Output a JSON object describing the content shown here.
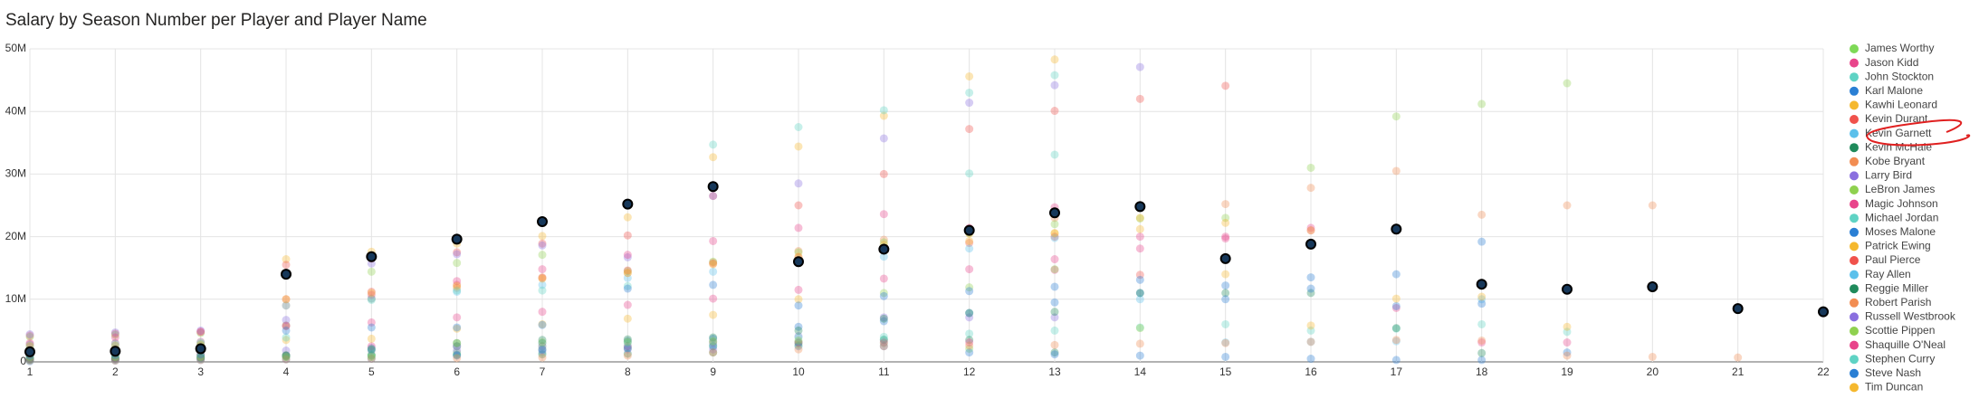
{
  "chart_data": {
    "type": "scatter",
    "title": "Salary by Season Number per Player and Player Name",
    "x": [
      1,
      2,
      3,
      4,
      5,
      6,
      7,
      8,
      9,
      10,
      11,
      12,
      13,
      14,
      15,
      16,
      17,
      18,
      19,
      20,
      21,
      22
    ],
    "xlim": [
      1,
      22
    ],
    "xticks": [
      1,
      2,
      3,
      4,
      5,
      6,
      7,
      8,
      9,
      10,
      11,
      12,
      13,
      14,
      15,
      16,
      17,
      18,
      19,
      20,
      21,
      22
    ],
    "ylim": [
      0,
      50000000
    ],
    "yticks": [
      0,
      {
        "value": 10000000,
        "label": "10M"
      },
      {
        "value": 20000000,
        "label": "20M"
      },
      {
        "value": 30000000,
        "label": "30M"
      },
      {
        "value": 40000000,
        "label": "40M"
      },
      {
        "value": 50000000,
        "label": "50M"
      }
    ],
    "grid": true,
    "legend": "right",
    "series": [
      {
        "name": "James Worthy",
        "color": "#7ed957",
        "values": [
          700000.0,
          800000.0,
          1000000.0,
          1100000.0,
          1200000.0,
          1500000.0,
          2000000.0,
          2200000.0,
          2500000.0,
          2700000.0,
          3000000.0,
          2100000.0,
          null,
          null,
          null,
          null,
          null,
          null,
          null,
          null,
          null,
          null
        ]
      },
      {
        "name": "Jason Kidd",
        "color": "#e8458b",
        "values": [
          2800000.0,
          3000000.0,
          3200000.0,
          5800000.0,
          6300000.0,
          7100000.0,
          8000000.0,
          9100000.0,
          10100000.0,
          11500000.0,
          13300000.0,
          14800000.0,
          16400000.0,
          18100000.0,
          19700000.0,
          21400000.0,
          8600000.0,
          3100000.0,
          3100000.0,
          null,
          null,
          null
        ]
      },
      {
        "name": "John Stockton",
        "color": "#5fd3c4",
        "values": [
          300000.0,
          400000.0,
          500000.0,
          800000.0,
          1000000.0,
          1200000.0,
          1500000.0,
          2500000.0,
          2800000.0,
          3200000.0,
          3600000.0,
          4500000.0,
          5000000.0,
          5500000.0,
          6000000.0,
          5000000.0,
          5300000.0,
          6000000.0,
          4800000.0,
          null,
          null,
          null
        ]
      },
      {
        "name": "Karl Malone",
        "color": "#2a7fd4",
        "values": [
          400000.0,
          500000.0,
          700000.0,
          1000000.0,
          2200000.0,
          2500000.0,
          3000000.0,
          3300000.0,
          3700000.0,
          5600000.0,
          6500000.0,
          7800000.0,
          9500000.0,
          11000000.0,
          12200000.0,
          13500000.0,
          14000000.0,
          19200000.0,
          1500000.0,
          null,
          null,
          null
        ]
      },
      {
        "name": "Kawhi Leonard",
        "color": "#f5b82e",
        "values": [
          1700000.0,
          1900000.0,
          2900000.0,
          16400000.0,
          17600000.0,
          18900000.0,
          20100000.0,
          23100000.0,
          32700000.0,
          34400000.0,
          39300000.0,
          45600000.0,
          48300000.0,
          null,
          null,
          null,
          null,
          null,
          null,
          null,
          null,
          null
        ]
      },
      {
        "name": "Kevin Durant",
        "color": "#f0524c",
        "values": [
          4200000.0,
          4500000.0,
          4800000.0,
          15500000.0,
          16500000.0,
          17500000.0,
          18900000.0,
          20200000.0,
          26500000.0,
          25000000.0,
          30000000.0,
          37200000.0,
          40100000.0,
          42000000.0,
          44100000.0,
          null,
          null,
          null,
          null,
          null,
          null,
          null
        ]
      },
      {
        "name": "Kevin Garnett",
        "color": "#5bc0eb",
        "highlighted": true,
        "values": [
          1600000.0,
          1700000.0,
          2100000.0,
          14000000.0,
          16800000.0,
          19600000.0,
          22400000.0,
          25200000.0,
          28000000.0,
          16000000.0,
          18000000.0,
          21000000.0,
          23800000.0,
          24800000.0,
          16500000.0,
          18800000.0,
          21200000.0,
          12400000.0,
          11600000.0,
          12000000.0,
          8500000.0,
          8000000.0
        ]
      },
      {
        "name": "Kevin McHale",
        "color": "#1f8a5b",
        "values": [
          300000.0,
          400000.0,
          500000.0,
          900000.0,
          1000000.0,
          1100000.0,
          1200000.0,
          1300000.0,
          1500000.0,
          3000000.0,
          3500000.0,
          3500000.0,
          1500000.0,
          null,
          null,
          null,
          null,
          null,
          null,
          null,
          null,
          null
        ]
      },
      {
        "name": "Kobe Bryant",
        "color": "#f28d52",
        "values": [
          1000000.0,
          1200000.0,
          1300000.0,
          9000000.0,
          10100000.0,
          11800000.0,
          13500000.0,
          14200000.0,
          15900000.0,
          17700000.0,
          19500000.0,
          21300000.0,
          23000000.0,
          24800000.0,
          25200000.0,
          27800000.0,
          30500000.0,
          23500000.0,
          25000000.0,
          25000000.0,
          null,
          null
        ]
      },
      {
        "name": "Larry Bird",
        "color": "#8a6fdf",
        "values": [
          600000.0,
          600000.0,
          600000.0,
          1800000.0,
          1800000.0,
          1800000.0,
          1800000.0,
          2000000.0,
          2000000.0,
          4100000.0,
          7100000.0,
          7100000.0,
          7100000.0,
          null,
          null,
          null,
          null,
          null,
          null,
          null,
          null,
          null
        ]
      },
      {
        "name": "LeBron James",
        "color": "#8fd14f",
        "values": [
          4000000.0,
          4300000.0,
          4600000.0,
          5800000.0,
          14400000.0,
          15800000.0,
          17100000.0,
          14500000.0,
          16000000.0,
          17500000.0,
          19100000.0,
          20600000.0,
          22000000.0,
          22900000.0,
          23000000.0,
          31000000.0,
          39200000.0,
          41200000.0,
          44500000.0,
          null,
          null,
          null
        ]
      },
      {
        "name": "Magic Johnson",
        "color": "#e8458b",
        "values": [
          500000.0,
          500000.0,
          1000000.0,
          1000000.0,
          2500000.0,
          2500000.0,
          2500000.0,
          2500000.0,
          3100000.0,
          3100000.0,
          3100000.0,
          3100000.0,
          14700000.0,
          null,
          null,
          null,
          null,
          null,
          null,
          null,
          null,
          null
        ]
      },
      {
        "name": "Michael Jordan",
        "color": "#5fd3c4",
        "values": [
          600000.0,
          800000.0,
          900000.0,
          1000000.0,
          2000000.0,
          2500000.0,
          2500000.0,
          3000000.0,
          3200000.0,
          3900000.0,
          4000000.0,
          30100000.0,
          33100000.0,
          null,
          null,
          null,
          null,
          null,
          null,
          null,
          null,
          null
        ]
      },
      {
        "name": "Moses Malone",
        "color": "#2a7fd4",
        "values": [
          100000.0,
          200000.0,
          300000.0,
          400000.0,
          500000.0,
          1000000.0,
          2000000.0,
          2200000.0,
          2500000.0,
          2500000.0,
          2500000.0,
          1500000.0,
          1200000.0,
          1000000.0,
          800000.0,
          500000.0,
          300000.0,
          300000.0,
          null,
          null,
          null,
          null
        ]
      },
      {
        "name": "Patrick Ewing",
        "color": "#f5b82e",
        "values": [
          1700000.0,
          2000000.0,
          2500000.0,
          3500000.0,
          3700000.0,
          5300000.0,
          6000000.0,
          6900000.0,
          7500000.0,
          10000000.0,
          18700000.0,
          20500000.0,
          20500000.0,
          23000000.0,
          14000000.0,
          5800000.0,
          null,
          null,
          null,
          null,
          null,
          null
        ]
      },
      {
        "name": "Paul Pierce",
        "color": "#f0524c",
        "values": [
          2000000.0,
          2100000.0,
          2300000.0,
          10000000.0,
          11200000.0,
          12300000.0,
          13400000.0,
          14600000.0,
          15700000.0,
          16700000.0,
          17900000.0,
          19000000.0,
          20000000.0,
          13900000.0,
          null,
          null,
          null,
          null,
          null,
          null,
          null,
          null
        ]
      },
      {
        "name": "Ray Allen",
        "color": "#5bc0eb",
        "values": [
          2400000.0,
          2600000.0,
          2800000.0,
          9000000.0,
          10100000.0,
          11200000.0,
          12300000.0,
          13400000.0,
          14400000.0,
          16100000.0,
          16800000.0,
          18100000.0,
          19800000.0,
          10000000.0,
          3100000.0,
          3200000.0,
          3300000.0,
          10000000.0,
          null,
          null,
          null,
          null
        ]
      },
      {
        "name": "Reggie Miller",
        "color": "#1f8a5b",
        "values": [
          500000.0,
          600000.0,
          700000.0,
          1000000.0,
          2000000.0,
          3000000.0,
          3500000.0,
          3600000.0,
          3900000.0,
          5000000.0,
          6900000.0,
          7800000.0,
          8000000.0,
          11000000.0,
          11000000.0,
          11000000.0,
          5400000.0,
          1400000.0,
          null,
          null,
          null,
          null
        ]
      },
      {
        "name": "Robert Parish",
        "color": "#f28d52",
        "values": [
          200000.0,
          200000.0,
          300000.0,
          400000.0,
          500000.0,
          600000.0,
          700000.0,
          1000000.0,
          1500000.0,
          2000000.0,
          2500000.0,
          2600000.0,
          2700000.0,
          2900000.0,
          3000000.0,
          3200000.0,
          3500000.0,
          3400000.0,
          1000000.0,
          800000.0,
          700000.0,
          null
        ]
      },
      {
        "name": "Russell Westbrook",
        "color": "#8a6fdf",
        "values": [
          4400000.0,
          4700000.0,
          5000000.0,
          6700000.0,
          15700000.0,
          17200000.0,
          18600000.0,
          16700000.0,
          26500000.0,
          28500000.0,
          35700000.0,
          41400000.0,
          44200000.0,
          47100000.0,
          null,
          null,
          null,
          null,
          null,
          null,
          null,
          null
        ]
      },
      {
        "name": "Scottie Pippen",
        "color": "#8fd14f",
        "values": [
          800000.0,
          800000.0,
          800000.0,
          800000.0,
          800000.0,
          3000000.0,
          3100000.0,
          3200000.0,
          3300000.0,
          3400000.0,
          11000000.0,
          11900000.0,
          14800000.0,
          5400000.0,
          null,
          null,
          null,
          null,
          null,
          null,
          null,
          null
        ]
      },
      {
        "name": "Shaquille O'Neal",
        "color": "#e8458b",
        "values": [
          3000000.0,
          3900000.0,
          4800000.0,
          5700000.0,
          10700000.0,
          12900000.0,
          14800000.0,
          17100000.0,
          19300000.0,
          21400000.0,
          23600000.0,
          21400000.0,
          24700000.0,
          20000000.0,
          20000000.0,
          21000000.0,
          null,
          null,
          null,
          null,
          null,
          null
        ]
      },
      {
        "name": "Stephen Curry",
        "color": "#5fd3c4",
        "values": [
          2700000.0,
          2900000.0,
          3100000.0,
          3900000.0,
          9900000.0,
          11400000.0,
          11400000.0,
          12100000.0,
          34700000.0,
          37500000.0,
          40200000.0,
          43000000.0,
          45800000.0,
          null,
          null,
          null,
          null,
          null,
          null,
          null,
          null,
          null
        ]
      },
      {
        "name": "Steve Nash",
        "color": "#2a7fd4",
        "values": [
          1000000.0,
          1100000.0,
          1200000.0,
          5000000.0,
          5500000.0,
          5500000.0,
          5900000.0,
          11700000.0,
          12300000.0,
          9000000.0,
          10500000.0,
          11300000.0,
          12000000.0,
          13100000.0,
          10000000.0,
          11700000.0,
          8900000.0,
          9300000.0,
          null,
          null,
          null,
          null
        ]
      },
      {
        "name": "Tim Duncan",
        "color": "#f5b82e",
        "values": [
          2500000.0,
          2600000.0,
          2700000.0,
          10000000.0,
          11000000.0,
          12100000.0,
          13300000.0,
          14200000.0,
          15600000.0,
          16800000.0,
          18100000.0,
          19300000.0,
          20600000.0,
          21200000.0,
          22200000.0,
          21000000.0,
          10100000.0,
          10400000.0,
          5600000.0,
          null,
          null,
          null
        ]
      }
    ]
  }
}
